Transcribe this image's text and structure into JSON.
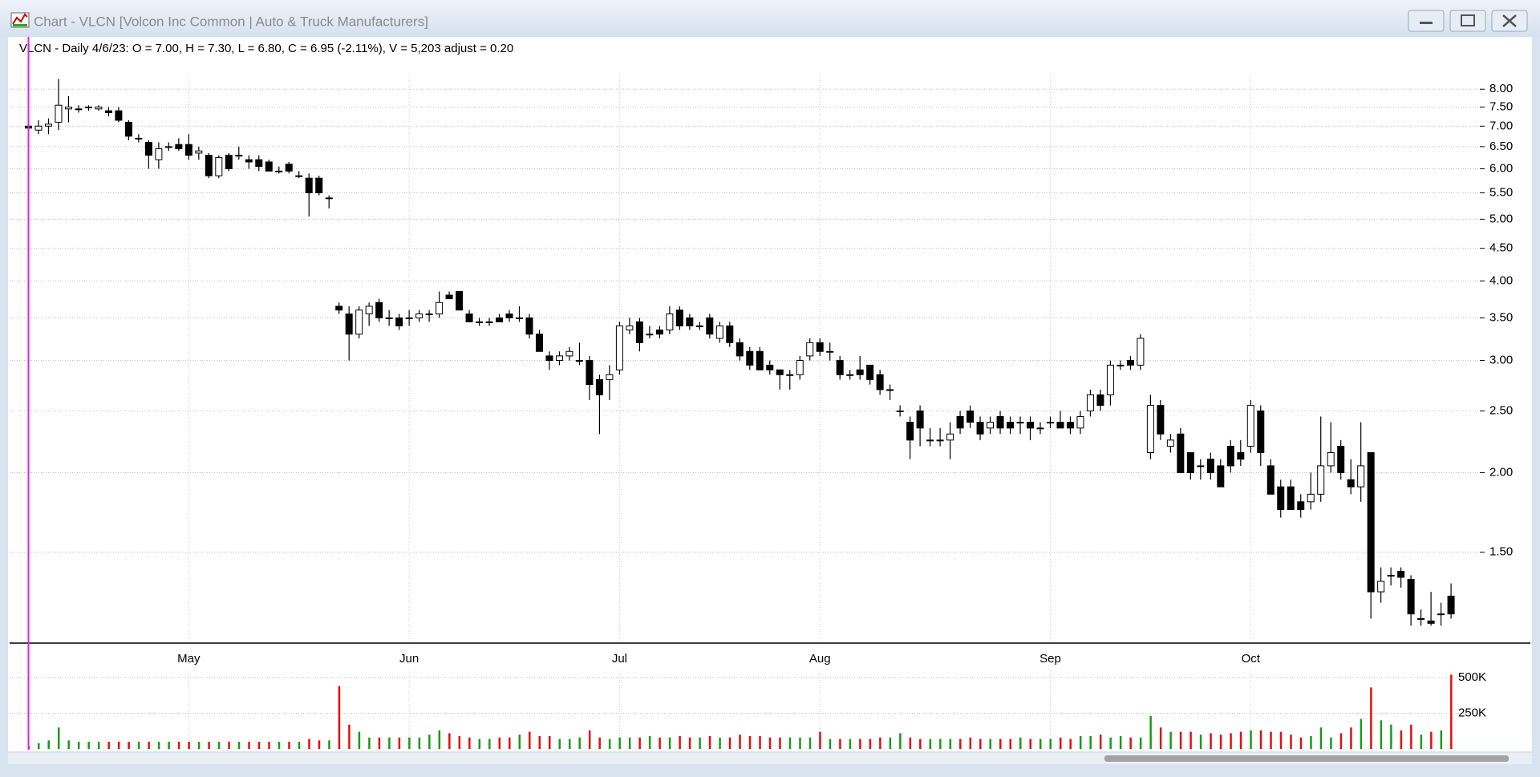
{
  "window_title": "Chart - VLCN [Volcon Inc Common | Auto & Truck Manufacturers]",
  "chart_data": {
    "type": "candlestick",
    "subtitle": "VLCN - Daily 4/6/23:  O = 7.00,  H = 7.30,  L = 6.80,  C = 6.95 (-2.11%), V = 5,203  adjust = 0.20",
    "categories": [
      null,
      null,
      null,
      null,
      null,
      null,
      null,
      null,
      null,
      null,
      null,
      null,
      null,
      null,
      null,
      null,
      "May",
      null,
      null,
      null,
      null,
      null,
      null,
      null,
      null,
      null,
      null,
      null,
      null,
      null,
      null,
      null,
      null,
      null,
      null,
      null,
      null,
      null,
      "Jun",
      null,
      null,
      null,
      null,
      null,
      null,
      null,
      null,
      null,
      null,
      null,
      null,
      null,
      null,
      null,
      null,
      null,
      null,
      null,
      null,
      "Jul",
      null,
      null,
      null,
      null,
      null,
      null,
      null,
      null,
      null,
      null,
      null,
      null,
      null,
      null,
      null,
      null,
      null,
      null,
      null,
      "Aug",
      null,
      null,
      null,
      null,
      null,
      null,
      null,
      null,
      null,
      null,
      null,
      null,
      null,
      null,
      null,
      null,
      null,
      null,
      null,
      null,
      null,
      null,
      "Sep",
      null,
      null,
      null,
      null,
      null,
      null,
      null,
      null,
      null,
      null,
      null,
      null,
      null,
      null,
      null,
      null,
      null,
      null,
      null,
      "Oct",
      null,
      null,
      null,
      null,
      null,
      null,
      null,
      null,
      null,
      null,
      null,
      null,
      null,
      null,
      null,
      null,
      null,
      null,
      null,
      null
    ],
    "open": [
      7.0,
      6.9,
      7.0,
      7.1,
      7.45,
      7.45,
      7.5,
      7.45,
      7.4,
      7.4,
      7.1,
      6.7,
      6.6,
      6.2,
      6.5,
      6.55,
      6.55,
      6.35,
      6.3,
      5.85,
      6.3,
      6.3,
      6.2,
      6.2,
      6.15,
      5.95,
      6.1,
      5.85,
      5.8,
      5.8,
      5.4,
      3.65,
      3.55,
      3.3,
      3.55,
      3.7,
      3.5,
      3.5,
      3.5,
      3.5,
      3.55,
      3.55,
      3.8,
      3.85,
      3.55,
      3.45,
      3.45,
      3.5,
      3.55,
      3.5,
      3.5,
      3.3,
      3.05,
      3.0,
      3.05,
      3.0,
      3.0,
      2.8,
      2.8,
      2.9,
      3.35,
      3.45,
      3.3,
      3.35,
      3.35,
      3.6,
      3.5,
      3.4,
      3.5,
      3.25,
      3.4,
      3.2,
      3.1,
      3.1,
      2.95,
      2.9,
      2.85,
      2.85,
      3.05,
      3.2,
      3.1,
      3.0,
      2.85,
      2.9,
      2.95,
      2.85,
      2.7,
      2.5,
      2.4,
      2.5,
      2.25,
      2.25,
      2.25,
      2.45,
      2.5,
      2.4,
      2.35,
      2.45,
      2.4,
      2.4,
      2.4,
      2.35,
      2.4,
      2.4,
      2.4,
      2.35,
      2.5,
      2.65,
      2.65,
      2.95,
      3.0,
      2.95,
      2.15,
      2.55,
      2.2,
      2.3,
      2.15,
      2.05,
      2.1,
      2.05,
      2.2,
      2.15,
      2.2,
      2.5,
      2.05,
      1.9,
      1.9,
      1.8,
      1.8,
      1.85,
      2.05,
      2.2,
      1.95,
      1.9,
      2.15,
      1.3,
      1.38,
      1.4,
      1.36,
      1.18,
      1.17,
      1.2,
      1.28
    ],
    "high": [
      7.3,
      7.15,
      7.2,
      8.3,
      7.8,
      7.55,
      7.55,
      7.55,
      7.5,
      7.5,
      7.15,
      6.8,
      6.65,
      6.6,
      6.6,
      6.7,
      6.8,
      6.5,
      6.35,
      6.3,
      6.35,
      6.5,
      6.3,
      6.3,
      6.2,
      6.05,
      6.15,
      5.95,
      5.9,
      5.85,
      5.45,
      3.7,
      3.65,
      3.65,
      3.7,
      3.75,
      3.6,
      3.55,
      3.6,
      3.6,
      3.6,
      3.85,
      3.85,
      3.85,
      3.6,
      3.5,
      3.5,
      3.55,
      3.6,
      3.65,
      3.55,
      3.35,
      3.1,
      3.1,
      3.15,
      3.2,
      3.05,
      2.85,
      2.95,
      3.45,
      3.5,
      3.5,
      3.4,
      3.4,
      3.65,
      3.65,
      3.55,
      3.45,
      3.55,
      3.45,
      3.45,
      3.25,
      3.15,
      3.15,
      3.0,
      2.9,
      2.9,
      3.05,
      3.25,
      3.25,
      3.2,
      3.05,
      2.9,
      3.05,
      2.95,
      2.9,
      2.75,
      2.55,
      2.45,
      2.55,
      2.35,
      2.35,
      2.4,
      2.5,
      2.55,
      2.45,
      2.45,
      2.5,
      2.45,
      2.45,
      2.45,
      2.4,
      2.45,
      2.5,
      2.45,
      2.5,
      2.7,
      2.7,
      3.0,
      3.0,
      3.05,
      3.3,
      2.65,
      2.6,
      2.3,
      2.35,
      2.15,
      2.1,
      2.15,
      2.1,
      2.25,
      2.25,
      2.6,
      2.55,
      2.1,
      1.95,
      1.95,
      1.85,
      2.0,
      2.45,
      2.4,
      2.25,
      2.1,
      2.4,
      2.15,
      1.42,
      1.42,
      1.42,
      1.38,
      1.22,
      1.3,
      1.25,
      1.34
    ],
    "low": [
      6.8,
      6.8,
      6.8,
      6.9,
      7.1,
      7.35,
      7.4,
      7.4,
      7.25,
      7.1,
      6.65,
      6.6,
      6.0,
      6.0,
      6.4,
      6.4,
      6.2,
      6.2,
      5.8,
      5.8,
      5.95,
      6.2,
      6.0,
      5.95,
      5.95,
      5.9,
      5.9,
      5.8,
      5.05,
      5.45,
      5.2,
      3.55,
      3.0,
      3.25,
      3.4,
      3.45,
      3.4,
      3.35,
      3.4,
      3.45,
      3.45,
      3.5,
      3.75,
      3.6,
      3.45,
      3.4,
      3.4,
      3.45,
      3.45,
      3.45,
      3.25,
      3.1,
      2.9,
      2.95,
      3.0,
      2.95,
      2.6,
      2.3,
      2.6,
      2.85,
      3.3,
      3.1,
      3.25,
      3.25,
      3.3,
      3.35,
      3.35,
      3.35,
      3.25,
      3.2,
      3.15,
      3.0,
      2.9,
      2.9,
      2.85,
      2.7,
      2.7,
      2.8,
      3.0,
      3.05,
      3.0,
      2.8,
      2.8,
      2.8,
      2.75,
      2.65,
      2.6,
      2.45,
      2.1,
      2.2,
      2.2,
      2.2,
      2.1,
      2.3,
      2.35,
      2.25,
      2.3,
      2.3,
      2.3,
      2.3,
      2.25,
      2.3,
      2.35,
      2.35,
      2.3,
      2.3,
      2.45,
      2.5,
      2.55,
      2.9,
      2.9,
      2.9,
      2.1,
      2.25,
      2.15,
      2.0,
      1.95,
      1.95,
      1.95,
      1.9,
      2.0,
      2.05,
      2.15,
      2.05,
      1.85,
      1.7,
      1.75,
      1.7,
      1.75,
      1.8,
      2.0,
      1.95,
      1.85,
      1.8,
      1.18,
      1.25,
      1.33,
      1.32,
      1.15,
      1.15,
      1.15,
      1.15,
      1.18
    ],
    "close": [
      6.95,
      7.0,
      7.05,
      7.55,
      7.5,
      7.45,
      7.5,
      7.5,
      7.35,
      7.15,
      6.75,
      6.7,
      6.3,
      6.45,
      6.5,
      6.45,
      6.3,
      6.4,
      5.85,
      6.25,
      6.0,
      6.3,
      6.15,
      6.05,
      5.95,
      5.95,
      5.95,
      5.85,
      5.5,
      5.5,
      5.4,
      3.6,
      3.3,
      3.6,
      3.65,
      3.5,
      3.5,
      3.4,
      3.5,
      3.55,
      3.55,
      3.7,
      3.75,
      3.6,
      3.45,
      3.45,
      3.45,
      3.45,
      3.5,
      3.5,
      3.3,
      3.1,
      3.0,
      3.05,
      3.1,
      3.0,
      2.75,
      2.65,
      2.85,
      3.4,
      3.4,
      3.2,
      3.3,
      3.3,
      3.55,
      3.4,
      3.4,
      3.4,
      3.3,
      3.4,
      3.2,
      3.05,
      2.95,
      2.9,
      2.9,
      2.85,
      2.85,
      3.0,
      3.2,
      3.1,
      3.1,
      2.85,
      2.85,
      2.85,
      2.8,
      2.7,
      2.7,
      2.5,
      2.25,
      2.35,
      2.25,
      2.25,
      2.3,
      2.35,
      2.4,
      2.3,
      2.4,
      2.35,
      2.35,
      2.4,
      2.35,
      2.35,
      2.4,
      2.35,
      2.35,
      2.45,
      2.65,
      2.55,
      2.95,
      2.95,
      2.95,
      3.25,
      2.55,
      2.3,
      2.25,
      2.0,
      2.0,
      2.05,
      2.0,
      1.9,
      2.05,
      2.1,
      2.55,
      2.15,
      1.85,
      1.75,
      1.75,
      1.75,
      1.85,
      2.05,
      2.15,
      2.0,
      1.9,
      2.05,
      1.3,
      1.35,
      1.38,
      1.37,
      1.2,
      1.18,
      1.16,
      1.2,
      1.2
    ],
    "volume": [
      20000,
      40000,
      60000,
      150000,
      60000,
      50000,
      50000,
      50000,
      50000,
      50000,
      50000,
      50000,
      50000,
      50000,
      50000,
      50000,
      50000,
      50000,
      50000,
      50000,
      50000,
      50000,
      50000,
      50000,
      50000,
      50000,
      50000,
      50000,
      70000,
      60000,
      60000,
      440000,
      170000,
      120000,
      80000,
      80000,
      80000,
      80000,
      80000,
      80000,
      100000,
      130000,
      110000,
      90000,
      80000,
      70000,
      70000,
      80000,
      80000,
      100000,
      120000,
      90000,
      90000,
      70000,
      70000,
      80000,
      130000,
      80000,
      70000,
      80000,
      80000,
      80000,
      90000,
      80000,
      80000,
      90000,
      80000,
      80000,
      90000,
      80000,
      80000,
      100000,
      90000,
      90000,
      80000,
      80000,
      80000,
      80000,
      80000,
      120000,
      70000,
      70000,
      70000,
      70000,
      70000,
      80000,
      80000,
      110000,
      80000,
      70000,
      70000,
      70000,
      70000,
      70000,
      80000,
      70000,
      70000,
      70000,
      70000,
      80000,
      70000,
      70000,
      70000,
      80000,
      70000,
      90000,
      90000,
      100000,
      80000,
      90000,
      80000,
      80000,
      230000,
      150000,
      120000,
      120000,
      120000,
      100000,
      110000,
      100000,
      110000,
      120000,
      130000,
      130000,
      120000,
      120000,
      100000,
      80000,
      90000,
      150000,
      80000,
      110000,
      150000,
      210000,
      430000,
      200000,
      170000,
      130000,
      170000,
      100000,
      120000,
      130000,
      520000
    ],
    "log_scale": true,
    "ylim": [
      1.08,
      8.41
    ],
    "yticks": [
      {
        "value": 1.5,
        "label": "1.50"
      },
      {
        "value": 2,
        "label": "2.00"
      },
      {
        "value": 2.5,
        "label": "2.50"
      },
      {
        "value": 3,
        "label": "3.00"
      },
      {
        "value": 3.5,
        "label": "3.50"
      },
      {
        "value": 4,
        "label": "4.00"
      },
      {
        "value": 4.5,
        "label": "4.50"
      },
      {
        "value": 5,
        "label": "5.00"
      },
      {
        "value": 5.5,
        "label": "5.50"
      },
      {
        "value": 6,
        "label": "6.00"
      },
      {
        "value": 6.5,
        "label": "6.50"
      },
      {
        "value": 7,
        "label": "7.00"
      },
      {
        "value": 7.5,
        "label": "7.50"
      },
      {
        "value": 8,
        "label": "8.00"
      }
    ],
    "volume_ylim": [
      0,
      550000
    ],
    "volume_yticks": [
      {
        "value": 250000,
        "label": "250K"
      },
      {
        "value": 500000,
        "label": "500K"
      }
    ],
    "grid": true,
    "up_color": "#ffffff",
    "down_color": "#000000",
    "volume_up_color": "#1a9a1a",
    "volume_down_color": "#e01010"
  }
}
